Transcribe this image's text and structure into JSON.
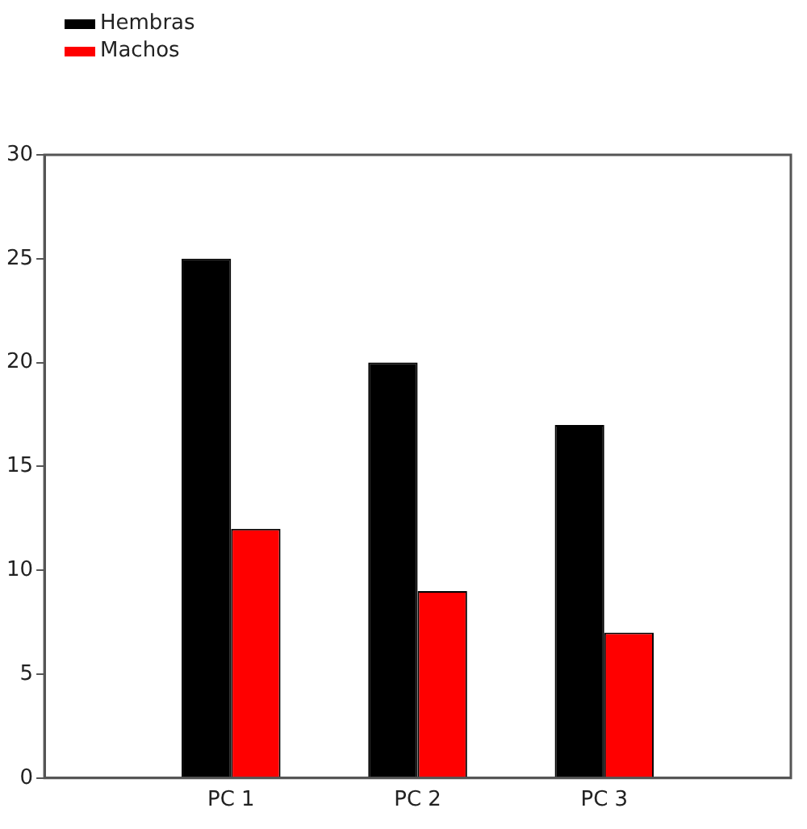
{
  "chart_data": {
    "type": "bar",
    "categories": [
      null,
      "PC 1",
      "PC 2",
      "PC 3",
      null
    ],
    "series": [
      {
        "name": "Hembras",
        "color": "#000000",
        "values": [
          null,
          25,
          20,
          17,
          null
        ]
      },
      {
        "name": "Machos",
        "color": "#ff0000",
        "values": [
          null,
          12,
          9,
          7,
          null
        ]
      }
    ],
    "ylim": [
      0,
      30
    ],
    "yticks": [
      0,
      5,
      10,
      15,
      20,
      25,
      30
    ],
    "grid": false,
    "legend": "top left"
  }
}
